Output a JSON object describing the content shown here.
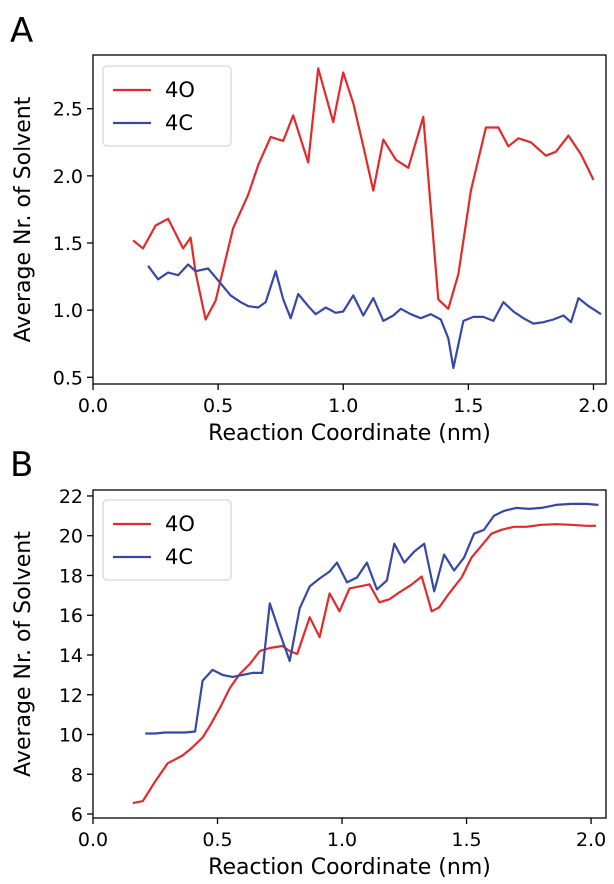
{
  "chart_data": [
    {
      "type": "line",
      "panel_label": "A",
      "xlabel": "Reaction Coordinate (nm)",
      "ylabel": "Average Nr. of Solvent",
      "xlim": [
        0.0,
        2.05
      ],
      "ylim": [
        0.45,
        2.9
      ],
      "xticks": [
        0.0,
        0.5,
        1.0,
        1.5,
        2.0
      ],
      "xtick_labels": [
        "0.0",
        "0.5",
        "1.0",
        "1.5",
        "2.0"
      ],
      "yticks": [
        0.5,
        1.0,
        1.5,
        2.0,
        2.5
      ],
      "ytick_labels": [
        "0.5",
        "1.0",
        "1.5",
        "2.0",
        "2.5"
      ],
      "legend_position": "top-left",
      "series": [
        {
          "name": "4O",
          "color": "#e32a2a",
          "points": [
            [
              0.16,
              1.52
            ],
            [
              0.2,
              1.46
            ],
            [
              0.25,
              1.63
            ],
            [
              0.3,
              1.68
            ],
            [
              0.36,
              1.46
            ],
            [
              0.39,
              1.54
            ],
            [
              0.41,
              1.28
            ],
            [
              0.45,
              0.93
            ],
            [
              0.49,
              1.07
            ],
            [
              0.56,
              1.61
            ],
            [
              0.62,
              1.86
            ],
            [
              0.66,
              2.08
            ],
            [
              0.71,
              2.29
            ],
            [
              0.76,
              2.26
            ],
            [
              0.8,
              2.45
            ],
            [
              0.86,
              2.1
            ],
            [
              0.9,
              2.8
            ],
            [
              0.96,
              2.4
            ],
            [
              1.0,
              2.77
            ],
            [
              1.04,
              2.54
            ],
            [
              1.08,
              2.22
            ],
            [
              1.12,
              1.89
            ],
            [
              1.16,
              2.27
            ],
            [
              1.21,
              2.12
            ],
            [
              1.26,
              2.06
            ],
            [
              1.32,
              2.44
            ],
            [
              1.38,
              1.08
            ],
            [
              1.42,
              1.01
            ],
            [
              1.46,
              1.27
            ],
            [
              1.51,
              1.89
            ],
            [
              1.57,
              2.36
            ],
            [
              1.62,
              2.36
            ],
            [
              1.66,
              2.22
            ],
            [
              1.7,
              2.28
            ],
            [
              1.75,
              2.25
            ],
            [
              1.81,
              2.15
            ],
            [
              1.85,
              2.18
            ],
            [
              1.9,
              2.3
            ],
            [
              1.95,
              2.16
            ],
            [
              2.0,
              1.97
            ]
          ]
        },
        {
          "name": "4C",
          "color": "#3548a8",
          "points": [
            [
              0.22,
              1.33
            ],
            [
              0.26,
              1.23
            ],
            [
              0.3,
              1.28
            ],
            [
              0.34,
              1.26
            ],
            [
              0.38,
              1.34
            ],
            [
              0.41,
              1.29
            ],
            [
              0.46,
              1.31
            ],
            [
              0.51,
              1.2
            ],
            [
              0.55,
              1.11
            ],
            [
              0.59,
              1.06
            ],
            [
              0.62,
              1.03
            ],
            [
              0.66,
              1.02
            ],
            [
              0.69,
              1.06
            ],
            [
              0.73,
              1.29
            ],
            [
              0.76,
              1.08
            ],
            [
              0.79,
              0.94
            ],
            [
              0.82,
              1.12
            ],
            [
              0.86,
              1.03
            ],
            [
              0.89,
              0.97
            ],
            [
              0.93,
              1.02
            ],
            [
              0.97,
              0.98
            ],
            [
              1.0,
              0.99
            ],
            [
              1.04,
              1.11
            ],
            [
              1.08,
              0.96
            ],
            [
              1.12,
              1.09
            ],
            [
              1.16,
              0.92
            ],
            [
              1.2,
              0.96
            ],
            [
              1.23,
              1.01
            ],
            [
              1.27,
              0.97
            ],
            [
              1.31,
              0.94
            ],
            [
              1.35,
              0.97
            ],
            [
              1.39,
              0.93
            ],
            [
              1.42,
              0.79
            ],
            [
              1.44,
              0.57
            ],
            [
              1.48,
              0.92
            ],
            [
              1.52,
              0.95
            ],
            [
              1.56,
              0.95
            ],
            [
              1.6,
              0.92
            ],
            [
              1.64,
              1.06
            ],
            [
              1.68,
              0.99
            ],
            [
              1.72,
              0.94
            ],
            [
              1.76,
              0.9
            ],
            [
              1.8,
              0.91
            ],
            [
              1.84,
              0.93
            ],
            [
              1.88,
              0.96
            ],
            [
              1.91,
              0.91
            ],
            [
              1.94,
              1.09
            ],
            [
              1.98,
              1.03
            ],
            [
              2.03,
              0.97
            ]
          ]
        }
      ]
    },
    {
      "type": "line",
      "panel_label": "B",
      "xlabel": "Reaction Coordinate (nm)",
      "ylabel": "Average Nr. of Solvent",
      "xlim": [
        0.0,
        2.06
      ],
      "ylim": [
        5.8,
        22.3
      ],
      "xticks": [
        0.0,
        0.5,
        1.0,
        1.5,
        2.0
      ],
      "xtick_labels": [
        "0.0",
        "0.5",
        "1.0",
        "1.5",
        "2.0"
      ],
      "yticks": [
        6,
        8,
        10,
        12,
        14,
        16,
        18,
        20,
        22
      ],
      "ytick_labels": [
        "6",
        "8",
        "10",
        "12",
        "14",
        "16",
        "18",
        "20",
        "22"
      ],
      "legend_position": "top-left",
      "series": [
        {
          "name": "4O",
          "color": "#e32a2a",
          "points": [
            [
              0.16,
              6.55
            ],
            [
              0.2,
              6.65
            ],
            [
              0.25,
              7.65
            ],
            [
              0.3,
              8.55
            ],
            [
              0.36,
              8.95
            ],
            [
              0.39,
              9.25
            ],
            [
              0.44,
              9.85
            ],
            [
              0.47,
              10.45
            ],
            [
              0.51,
              11.35
            ],
            [
              0.55,
              12.35
            ],
            [
              0.59,
              13.05
            ],
            [
              0.63,
              13.55
            ],
            [
              0.67,
              14.2
            ],
            [
              0.71,
              14.35
            ],
            [
              0.76,
              14.45
            ],
            [
              0.79,
              14.2
            ],
            [
              0.82,
              14.05
            ],
            [
              0.87,
              15.9
            ],
            [
              0.91,
              14.9
            ],
            [
              0.95,
              17.1
            ],
            [
              0.99,
              16.2
            ],
            [
              1.03,
              17.35
            ],
            [
              1.07,
              17.45
            ],
            [
              1.11,
              17.55
            ],
            [
              1.15,
              16.65
            ],
            [
              1.19,
              16.8
            ],
            [
              1.23,
              17.15
            ],
            [
              1.28,
              17.55
            ],
            [
              1.32,
              17.95
            ],
            [
              1.36,
              16.2
            ],
            [
              1.39,
              16.4
            ],
            [
              1.43,
              17.1
            ],
            [
              1.48,
              17.9
            ],
            [
              1.52,
              18.9
            ],
            [
              1.56,
              19.5
            ],
            [
              1.6,
              20.1
            ],
            [
              1.64,
              20.3
            ],
            [
              1.69,
              20.45
            ],
            [
              1.74,
              20.45
            ],
            [
              1.8,
              20.55
            ],
            [
              1.86,
              20.58
            ],
            [
              1.92,
              20.55
            ],
            [
              1.98,
              20.5
            ],
            [
              2.02,
              20.5
            ]
          ]
        },
        {
          "name": "4C",
          "color": "#3548a8",
          "points": [
            [
              0.21,
              10.05
            ],
            [
              0.25,
              10.05
            ],
            [
              0.29,
              10.1
            ],
            [
              0.33,
              10.1
            ],
            [
              0.37,
              10.1
            ],
            [
              0.41,
              10.15
            ],
            [
              0.44,
              12.7
            ],
            [
              0.48,
              13.25
            ],
            [
              0.52,
              13.0
            ],
            [
              0.56,
              12.9
            ],
            [
              0.6,
              13.0
            ],
            [
              0.64,
              13.1
            ],
            [
              0.68,
              13.1
            ],
            [
              0.71,
              16.6
            ],
            [
              0.75,
              15.1
            ],
            [
              0.79,
              13.7
            ],
            [
              0.83,
              16.35
            ],
            [
              0.87,
              17.45
            ],
            [
              0.91,
              17.85
            ],
            [
              0.95,
              18.2
            ],
            [
              0.98,
              18.65
            ],
            [
              1.02,
              17.65
            ],
            [
              1.06,
              17.9
            ],
            [
              1.1,
              18.65
            ],
            [
              1.14,
              17.3
            ],
            [
              1.18,
              17.75
            ],
            [
              1.21,
              19.6
            ],
            [
              1.25,
              18.65
            ],
            [
              1.29,
              19.2
            ],
            [
              1.33,
              19.6
            ],
            [
              1.37,
              17.2
            ],
            [
              1.41,
              19.05
            ],
            [
              1.45,
              18.25
            ],
            [
              1.49,
              18.9
            ],
            [
              1.53,
              20.1
            ],
            [
              1.57,
              20.3
            ],
            [
              1.61,
              21.0
            ],
            [
              1.65,
              21.25
            ],
            [
              1.7,
              21.4
            ],
            [
              1.75,
              21.35
            ],
            [
              1.8,
              21.4
            ],
            [
              1.86,
              21.55
            ],
            [
              1.92,
              21.6
            ],
            [
              1.98,
              21.6
            ],
            [
              2.03,
              21.55
            ]
          ]
        }
      ]
    }
  ]
}
